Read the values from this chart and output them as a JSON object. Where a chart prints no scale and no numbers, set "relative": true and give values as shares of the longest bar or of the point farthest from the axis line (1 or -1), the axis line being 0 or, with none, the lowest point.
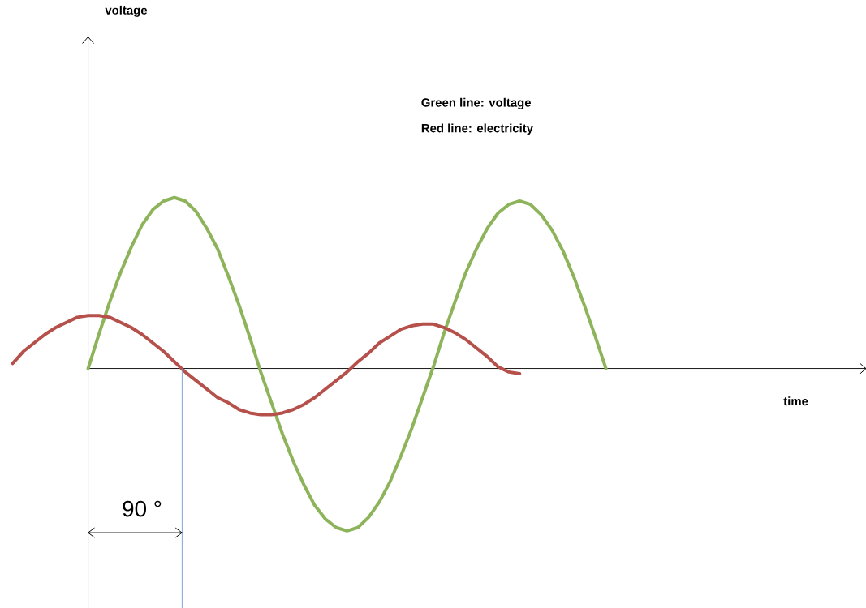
{
  "chart_data": {
    "type": "line",
    "relative": true,
    "categories": [
      null,
      null,
      null,
      null,
      null,
      null,
      null,
      null,
      null,
      null,
      null,
      null,
      null,
      null,
      null,
      null,
      null,
      null,
      null,
      null,
      null,
      null,
      null,
      null,
      null,
      null,
      null,
      null,
      null,
      null,
      null,
      null,
      null,
      null,
      null,
      null,
      null,
      null,
      null,
      null,
      null,
      null,
      null,
      null,
      null,
      null,
      null,
      null,
      null,
      null,
      null,
      null,
      null,
      null,
      null,
      null
    ],
    "series": [
      {
        "color": "#8db45a",
        "values": [
          null,
          null,
          null,
          null,
          null,
          null,
          null,
          0,
          0.2,
          0.39,
          0.56,
          0.71,
          0.84,
          0.93,
          0.98,
          1,
          0.98,
          0.92,
          0.82,
          0.7,
          0.54,
          0.37,
          0.18,
          -0.02,
          -0.2,
          -0.38,
          -0.54,
          -0.68,
          -0.8,
          -0.88,
          -0.93,
          -0.95,
          -0.93,
          -0.87,
          -0.78,
          -0.66,
          -0.51,
          -0.35,
          -0.17,
          0.01,
          0.21,
          0.39,
          0.56,
          0.7,
          0.82,
          0.91,
          0.96,
          0.98,
          0.96,
          0.9,
          0.81,
          0.69,
          0.54,
          0.37,
          0.19,
          0
        ]
      },
      {
        "color": "#b5504b",
        "values": [
          0.03,
          0.1,
          0.15,
          0.2,
          0.24,
          0.27,
          0.3,
          0.31,
          0.31,
          0.3,
          0.27,
          0.24,
          0.2,
          0.15,
          0.1,
          0.04,
          -0.02,
          -0.07,
          -0.12,
          -0.17,
          -0.2,
          -0.24,
          -0.26,
          -0.27,
          -0.27,
          -0.26,
          -0.24,
          -0.21,
          -0.17,
          -0.12,
          -0.07,
          -0.02,
          0.04,
          0.09,
          0.15,
          0.19,
          0.23,
          0.25,
          0.26,
          0.26,
          0.24,
          0.21,
          0.17,
          0.12,
          0.07,
          0.01,
          -0.02,
          -0.03,
          null,
          null,
          null,
          null,
          null,
          null,
          null,
          null
        ]
      }
    ],
    "annotations": [
      "voltage",
      "Green line: voltage",
      "Red line: electricity",
      "time",
      "90 °"
    ]
  }
}
